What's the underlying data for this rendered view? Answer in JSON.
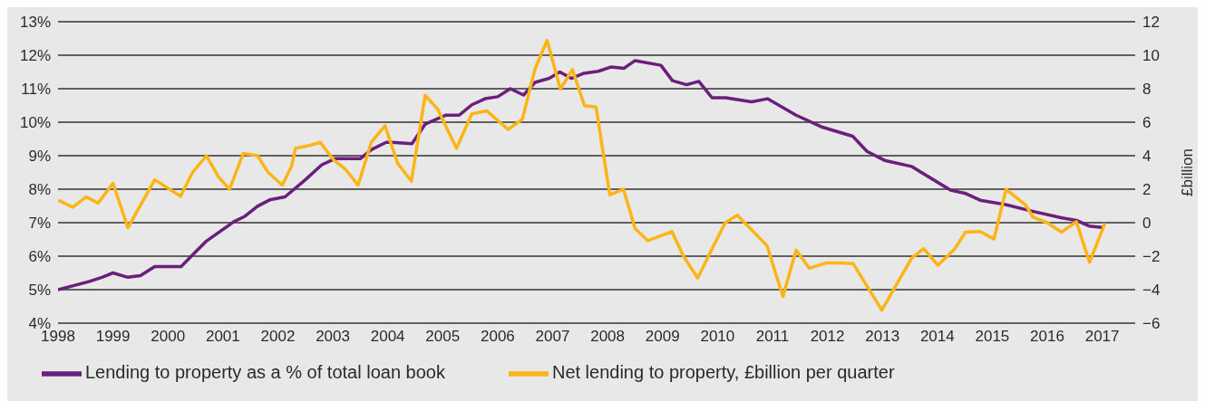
{
  "chart_data": {
    "type": "line",
    "y2label": "£billion",
    "xlim": [
      1998,
      2017.6
    ],
    "xticks": [
      1998,
      1999,
      2000,
      2001,
      2002,
      2003,
      2004,
      2005,
      2006,
      2007,
      2008,
      2009,
      2010,
      2011,
      2012,
      2013,
      2014,
      2015,
      2016,
      2017
    ],
    "ylim": [
      4,
      13
    ],
    "yticks": [
      {
        "value": 4,
        "label": "4%"
      },
      {
        "value": 5,
        "label": "5%"
      },
      {
        "value": 6,
        "label": "6%"
      },
      {
        "value": 7,
        "label": "7%"
      },
      {
        "value": 8,
        "label": "8%"
      },
      {
        "value": 9,
        "label": "9%"
      },
      {
        "value": 10,
        "label": "10%"
      },
      {
        "value": 11,
        "label": "11%"
      },
      {
        "value": 12,
        "label": "12%"
      },
      {
        "value": 13,
        "label": "13%"
      }
    ],
    "y2lim": [
      -6,
      12
    ],
    "y2ticks": [
      {
        "value": -6,
        "label": "−6"
      },
      {
        "value": -4,
        "label": "−4"
      },
      {
        "value": -2,
        "label": "−2"
      },
      0,
      2,
      4,
      6,
      8,
      10,
      12
    ],
    "grid": "y",
    "legend": "bottom left",
    "line_style": "solid",
    "marker": "none",
    "series": [
      {
        "name": "Lending to property as a % of total loan book",
        "color": "#6b1f7c",
        "x": [
          1998.0,
          1998.56,
          1998.8,
          1999.0,
          1999.27,
          1999.5,
          1999.76,
          2000.24,
          2000.45,
          2000.7,
          2001.2,
          2001.4,
          2001.63,
          2001.85,
          2002.13,
          2002.5,
          2002.8,
          2003.04,
          2003.5,
          2003.7,
          2003.97,
          2004.08,
          2004.44,
          2004.68,
          2005.06,
          2005.3,
          2005.53,
          2005.77,
          2006.0,
          2006.23,
          2006.47,
          2006.68,
          2006.94,
          2007.13,
          2007.34,
          2007.57,
          2007.83,
          2008.07,
          2008.3,
          2008.5,
          2008.97,
          2009.18,
          2009.44,
          2009.66,
          2009.9,
          2010.15,
          2010.62,
          2010.91,
          2011.43,
          2011.91,
          2012.46,
          2012.72,
          2013.04,
          2013.53,
          2014.24,
          2014.5,
          2014.78,
          2015.24,
          2015.73,
          2016.27,
          2016.53,
          2016.76,
          2017.03
        ],
        "values": [
          5.0,
          5.24,
          5.37,
          5.5,
          5.37,
          5.42,
          5.69,
          5.69,
          6.04,
          6.45,
          7.03,
          7.19,
          7.49,
          7.68,
          7.77,
          8.28,
          8.73,
          8.91,
          8.91,
          9.18,
          9.4,
          9.4,
          9.36,
          9.94,
          10.21,
          10.21,
          10.52,
          10.7,
          10.76,
          11.0,
          10.81,
          11.19,
          11.31,
          11.5,
          11.31,
          11.46,
          11.52,
          11.65,
          11.61,
          11.84,
          11.7,
          11.24,
          11.12,
          11.22,
          10.73,
          10.73,
          10.61,
          10.7,
          10.21,
          9.85,
          9.58,
          9.13,
          8.86,
          8.68,
          7.97,
          7.88,
          7.67,
          7.54,
          7.34,
          7.14,
          7.07,
          6.9,
          6.85
        ]
      },
      {
        "name": "Net lending to property, £billion per quarter",
        "color": "#fdb515",
        "axis": "y2",
        "x": [
          1998.0,
          1998.27,
          1998.51,
          1998.73,
          1999.0,
          1999.27,
          1999.76,
          2000.23,
          2000.45,
          2000.7,
          2000.92,
          2001.12,
          2001.37,
          2001.63,
          2001.82,
          2002.08,
          2002.25,
          2002.32,
          2002.59,
          2002.77,
          2003.02,
          2003.23,
          2003.46,
          2003.7,
          2003.95,
          2004.18,
          2004.43,
          2004.68,
          2004.91,
          2005.25,
          2005.53,
          2005.8,
          2006.19,
          2006.45,
          2006.68,
          2006.9,
          2007.14,
          2007.36,
          2007.58,
          2007.79,
          2008.04,
          2008.29,
          2008.5,
          2008.73,
          2009.17,
          2009.38,
          2009.64,
          2009.89,
          2010.14,
          2010.36,
          2010.9,
          2011.19,
          2011.43,
          2011.67,
          2011.97,
          2012.2,
          2012.47,
          2012.99,
          2013.53,
          2013.75,
          2014.01,
          2014.32,
          2014.51,
          2014.78,
          2015.03,
          2015.25,
          2015.6,
          2015.74,
          2016.0,
          2016.26,
          2016.53,
          2016.77,
          2017.05
        ],
        "values": [
          1.35,
          0.92,
          1.54,
          1.17,
          2.35,
          -0.3,
          2.56,
          1.58,
          3.01,
          4.0,
          2.74,
          1.99,
          4.14,
          4.0,
          3.01,
          2.24,
          3.37,
          4.44,
          4.62,
          4.8,
          3.73,
          3.19,
          2.24,
          4.8,
          5.79,
          3.55,
          2.47,
          7.61,
          6.77,
          4.44,
          6.5,
          6.68,
          5.57,
          6.18,
          9.19,
          10.89,
          7.97,
          9.15,
          6.99,
          6.9,
          1.67,
          1.99,
          -0.35,
          -1.07,
          -0.53,
          -2.0,
          -3.31,
          -1.64,
          0.0,
          0.45,
          -1.37,
          -4.42,
          -1.64,
          -2.72,
          -2.41,
          -2.4,
          -2.45,
          -5.22,
          -2.13,
          -1.55,
          -2.54,
          -1.55,
          -0.57,
          -0.53,
          -0.98,
          1.99,
          1.08,
          0.33,
          0.0,
          -0.57,
          0.06,
          -2.36,
          -0.03
        ]
      }
    ]
  }
}
